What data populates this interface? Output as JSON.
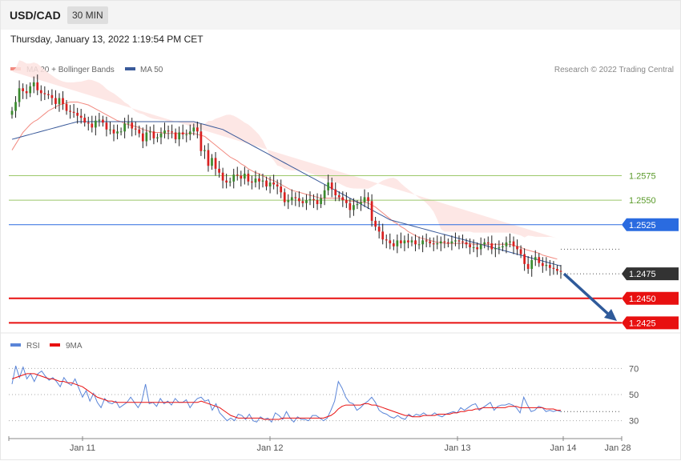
{
  "header": {
    "symbol": "USD/CAD",
    "timeframe": "30 MIN",
    "datetime": "Thursday, January 13, 2022 1:19:54 PM CET"
  },
  "legend": {
    "ma20_label": "MA 20 + Bollinger Bands",
    "ma50_label": "MA 50",
    "copyright": "Research © 2022 Trading Central",
    "rsi_label": "RSI",
    "ma9_label": "9MA"
  },
  "colors": {
    "up": "#3a8a2e",
    "down": "#d92020",
    "ma20": "#f28a80",
    "ma50": "#3a5a9a",
    "bollinger": "#fde3e1",
    "resistance": "#9cc86a",
    "pivot": "#2a6be0",
    "support": "#e81010",
    "last": "#333333",
    "arrow": "#2f5a9a",
    "rsi": "#5a85d8",
    "rsi_ma": "#e81010"
  },
  "chart_data": [
    {
      "type": "candlestick",
      "title": "USD/CAD 30 MIN",
      "x_labels": [
        "Jan 11",
        "Jan 12",
        "Jan 13",
        "Jan 14",
        "Jan 28"
      ],
      "y_range": [
        1.2418,
        1.2705
      ],
      "levels": [
        {
          "value": 1.2575,
          "label": "1.2575",
          "role": "resistance"
        },
        {
          "value": 1.255,
          "label": "1.2550",
          "role": "resistance"
        },
        {
          "value": 1.2525,
          "label": "1.2525",
          "role": "pivot"
        },
        {
          "value": 1.2475,
          "label": "1.2475",
          "role": "last"
        },
        {
          "value": 1.245,
          "label": "1.2450",
          "role": "support"
        },
        {
          "value": 1.2425,
          "label": "1.2425",
          "role": "support"
        }
      ],
      "candles_close": [
        1.2641,
        1.265,
        1.2664,
        1.2661,
        1.2659,
        1.2666,
        1.267,
        1.2662,
        1.2659,
        1.2658,
        1.2657,
        1.2654,
        1.2648,
        1.2654,
        1.2648,
        1.2641,
        1.264,
        1.2639,
        1.2636,
        1.2634,
        1.2629,
        1.2628,
        1.2624,
        1.2631,
        1.2632,
        1.2629,
        1.2622,
        1.2622,
        1.2618,
        1.262,
        1.262,
        1.2628,
        1.2629,
        1.2623,
        1.2622,
        1.2618,
        1.261,
        1.2619,
        1.262,
        1.2613,
        1.2614,
        1.2618,
        1.2621,
        1.262,
        1.2619,
        1.2612,
        1.2619,
        1.2617,
        1.2617,
        1.262,
        1.2624,
        1.262,
        1.26,
        1.2601,
        1.2585,
        1.2593,
        1.2582,
        1.2578,
        1.257,
        1.2568,
        1.2569,
        1.2576,
        1.2575,
        1.2572,
        1.2577,
        1.2569,
        1.2568,
        1.2572,
        1.2569,
        1.257,
        1.2564,
        1.2568,
        1.2566,
        1.2564,
        1.2558,
        1.2548,
        1.255,
        1.2553,
        1.2552,
        1.2549,
        1.2547,
        1.255,
        1.2551,
        1.255,
        1.2546,
        1.2552,
        1.256,
        1.2568,
        1.2561,
        1.2555,
        1.2553,
        1.255,
        1.2547,
        1.254,
        1.2545,
        1.2546,
        1.2548,
        1.2553,
        1.2549,
        1.2529,
        1.2523,
        1.2518,
        1.251,
        1.2509,
        1.2506,
        1.2503,
        1.2509,
        1.2506,
        1.2509,
        1.2507,
        1.2509,
        1.2505,
        1.2505,
        1.2509,
        1.2508,
        1.2506,
        1.2505,
        1.2506,
        1.2508,
        1.2507,
        1.2506,
        1.2508,
        1.2509,
        1.2508,
        1.2507,
        1.2505,
        1.2502,
        1.2502,
        1.25,
        1.2505,
        1.2507,
        1.2506,
        1.25,
        1.2501,
        1.2502,
        1.2503,
        1.2507,
        1.2508,
        1.2503,
        1.25,
        1.2495,
        1.2485,
        1.248,
        1.2489,
        1.2492,
        1.2486,
        1.2483,
        1.2484,
        1.2481,
        1.248,
        1.2478,
        1.2477
      ],
      "ma20_close": [
        1.2601,
        1.2607,
        1.2613,
        1.2619,
        1.2623,
        1.2627,
        1.263,
        1.2632,
        1.2635,
        1.2638,
        1.2641,
        1.2643,
        1.2645,
        1.2647,
        1.2648,
        1.2649,
        1.265,
        1.265,
        1.265,
        1.2649,
        1.2648,
        1.2647,
        1.2645,
        1.2643,
        1.2641,
        1.2639,
        1.2637,
        1.2635,
        1.2633,
        1.2631,
        1.263,
        1.2628,
        1.2627,
        1.2626,
        1.2625,
        1.2624,
        1.2622,
        1.2621,
        1.262,
        1.2619,
        1.2619,
        1.2619,
        1.2618,
        1.2618,
        1.2618,
        1.2618,
        1.2618,
        1.2618,
        1.2618,
        1.2618,
        1.2618,
        1.2617,
        1.2616,
        1.2615,
        1.2612,
        1.2609,
        1.2606,
        1.2603,
        1.26,
        1.2597,
        1.2594,
        1.2592,
        1.259,
        1.2587,
        1.2585,
        1.2582,
        1.258,
        1.2578,
        1.2577,
        1.2575,
        1.2573,
        1.2571,
        1.257,
        1.2568,
        1.2566,
        1.2564,
        1.2562,
        1.256,
        1.2559,
        1.2558,
        1.2557,
        1.2556,
        1.2555,
        1.2554,
        1.2553,
        1.2552,
        1.2552,
        1.2552,
        1.2552,
        1.2552,
        1.2552,
        1.2551,
        1.255,
        1.2549,
        1.2549,
        1.2548,
        1.2548,
        1.2548,
        1.2547,
        1.2545,
        1.2543,
        1.254,
        1.2537,
        1.2534,
        1.2531,
        1.2528,
        1.2526,
        1.2523,
        1.2521,
        1.2518,
        1.2516,
        1.2514,
        1.2512,
        1.2511,
        1.251,
        1.2509,
        1.2508,
        1.2507,
        1.2507,
        1.2506,
        1.2506,
        1.2506,
        1.2506,
        1.2506,
        1.2506,
        1.2506,
        1.2506,
        1.2505,
        1.2505,
        1.2505,
        1.2505,
        1.2505,
        1.2505,
        1.2505,
        1.2505,
        1.2505,
        1.2505,
        1.2505,
        1.2504,
        1.2503,
        1.2502,
        1.25,
        1.2499,
        1.2498,
        1.2497,
        1.2496,
        1.2494,
        1.2493,
        1.2492,
        1.2491,
        1.249
      ],
      "ma50_close": [
        1.2612,
        1.2613,
        1.2614,
        1.2615,
        1.2616,
        1.2617,
        1.2618,
        1.2619,
        1.262,
        1.2621,
        1.2622,
        1.2623,
        1.2624,
        1.2625,
        1.2626,
        1.2627,
        1.2628,
        1.2629,
        1.263,
        1.263,
        1.263,
        1.263,
        1.263,
        1.263,
        1.263,
        1.263,
        1.263,
        1.263,
        1.263,
        1.263,
        1.263,
        1.263,
        1.263,
        1.263,
        1.263,
        1.263,
        1.263,
        1.263,
        1.263,
        1.263,
        1.263,
        1.263,
        1.263,
        1.263,
        1.263,
        1.263,
        1.263,
        1.263,
        1.263,
        1.263,
        1.263,
        1.2629,
        1.2628,
        1.2627,
        1.2626,
        1.2625,
        1.2624,
        1.2623,
        1.2622,
        1.262,
        1.2618,
        1.2616,
        1.2614,
        1.2612,
        1.261,
        1.2608,
        1.2606,
        1.2604,
        1.2602,
        1.26,
        1.2598,
        1.2596,
        1.2594,
        1.2592,
        1.259,
        1.2588,
        1.2586,
        1.2584,
        1.2582,
        1.258,
        1.2578,
        1.2576,
        1.2574,
        1.2572,
        1.257,
        1.2568,
        1.2566,
        1.2564,
        1.2562,
        1.256,
        1.2558,
        1.2556,
        1.2554,
        1.2552,
        1.255,
        1.2548,
        1.2546,
        1.2544,
        1.2542,
        1.254,
        1.2538,
        1.2536,
        1.2534,
        1.2532,
        1.253,
        1.2529,
        1.2528,
        1.2527,
        1.2526,
        1.2525,
        1.2524,
        1.2523,
        1.2522,
        1.2521,
        1.252,
        1.2519,
        1.2518,
        1.2517,
        1.2516,
        1.2515,
        1.2514,
        1.2513,
        1.2512,
        1.2511,
        1.251,
        1.2509,
        1.2508,
        1.2507,
        1.2506,
        1.2505,
        1.2504,
        1.2503,
        1.2502,
        1.2501,
        1.25,
        1.2499,
        1.2498,
        1.2497,
        1.2496,
        1.2495,
        1.2494,
        1.2493,
        1.2492,
        1.2491,
        1.249,
        1.2489,
        1.2488,
        1.2487,
        1.2486,
        1.2485,
        1.2484,
        1.2483
      ]
    },
    {
      "type": "line",
      "title": "RSI",
      "y_ticks": [
        70,
        50,
        30
      ],
      "y_range": [
        20,
        80
      ],
      "series": [
        {
          "name": "RSI",
          "values": [
            58,
            72,
            63,
            71,
            62,
            66,
            60,
            66,
            68,
            64,
            61,
            63,
            60,
            56,
            63,
            59,
            57,
            62,
            55,
            48,
            53,
            45,
            51,
            44,
            40,
            47,
            44,
            43,
            45,
            40,
            42,
            44,
            48,
            44,
            40,
            45,
            58,
            43,
            44,
            41,
            47,
            43,
            45,
            42,
            47,
            44,
            44,
            46,
            40,
            44,
            47,
            48,
            45,
            46,
            38,
            43,
            36,
            33,
            30,
            32,
            30,
            35,
            34,
            31,
            35,
            30,
            29,
            33,
            31,
            32,
            29,
            36,
            34,
            31,
            37,
            32,
            29,
            33,
            31,
            31,
            30,
            34,
            34,
            32,
            30,
            32,
            38,
            45,
            60,
            55,
            48,
            44,
            43,
            38,
            40,
            43,
            45,
            48,
            44,
            38,
            36,
            35,
            33,
            32,
            34,
            32,
            31,
            35,
            33,
            35,
            34,
            36,
            34,
            34,
            36,
            34,
            33,
            35,
            36,
            37,
            36,
            40,
            38,
            40,
            42,
            43,
            38,
            40,
            42,
            44,
            38,
            41,
            42,
            42,
            43,
            42,
            40,
            36,
            48,
            42,
            37,
            38,
            41,
            40,
            37,
            38,
            37,
            38,
            37
          ]
        },
        {
          "name": "9MA",
          "values": [
            62,
            63,
            64,
            65,
            66,
            66,
            66,
            65,
            64,
            63,
            62,
            62,
            61,
            60,
            60,
            59,
            59,
            58,
            57,
            56,
            54,
            52,
            50,
            48,
            47,
            46,
            45,
            45,
            44,
            44,
            44,
            44,
            44,
            44,
            44,
            44,
            44,
            44,
            44,
            44,
            44,
            44,
            44,
            44,
            44,
            44,
            44,
            44,
            44,
            44,
            44,
            45,
            44,
            43,
            42,
            41,
            40,
            38,
            36,
            34,
            33,
            32,
            32,
            32,
            32,
            32,
            32,
            32,
            31,
            31,
            31,
            31,
            31,
            32,
            32,
            32,
            32,
            32,
            32,
            32,
            32,
            32,
            32,
            32,
            32,
            33,
            34,
            36,
            39,
            41,
            42,
            42,
            42,
            42,
            42,
            43,
            43,
            42,
            42,
            41,
            40,
            39,
            38,
            37,
            36,
            35,
            34,
            34,
            33,
            33,
            33,
            34,
            34,
            34,
            34,
            35,
            35,
            35,
            35,
            36,
            36,
            37,
            37,
            38,
            38,
            39,
            39,
            40,
            40,
            40,
            40,
            40,
            40,
            40,
            41,
            41,
            41,
            40,
            40,
            40,
            40,
            40,
            40,
            40,
            39,
            39,
            39,
            38,
            38
          ]
        }
      ]
    }
  ]
}
